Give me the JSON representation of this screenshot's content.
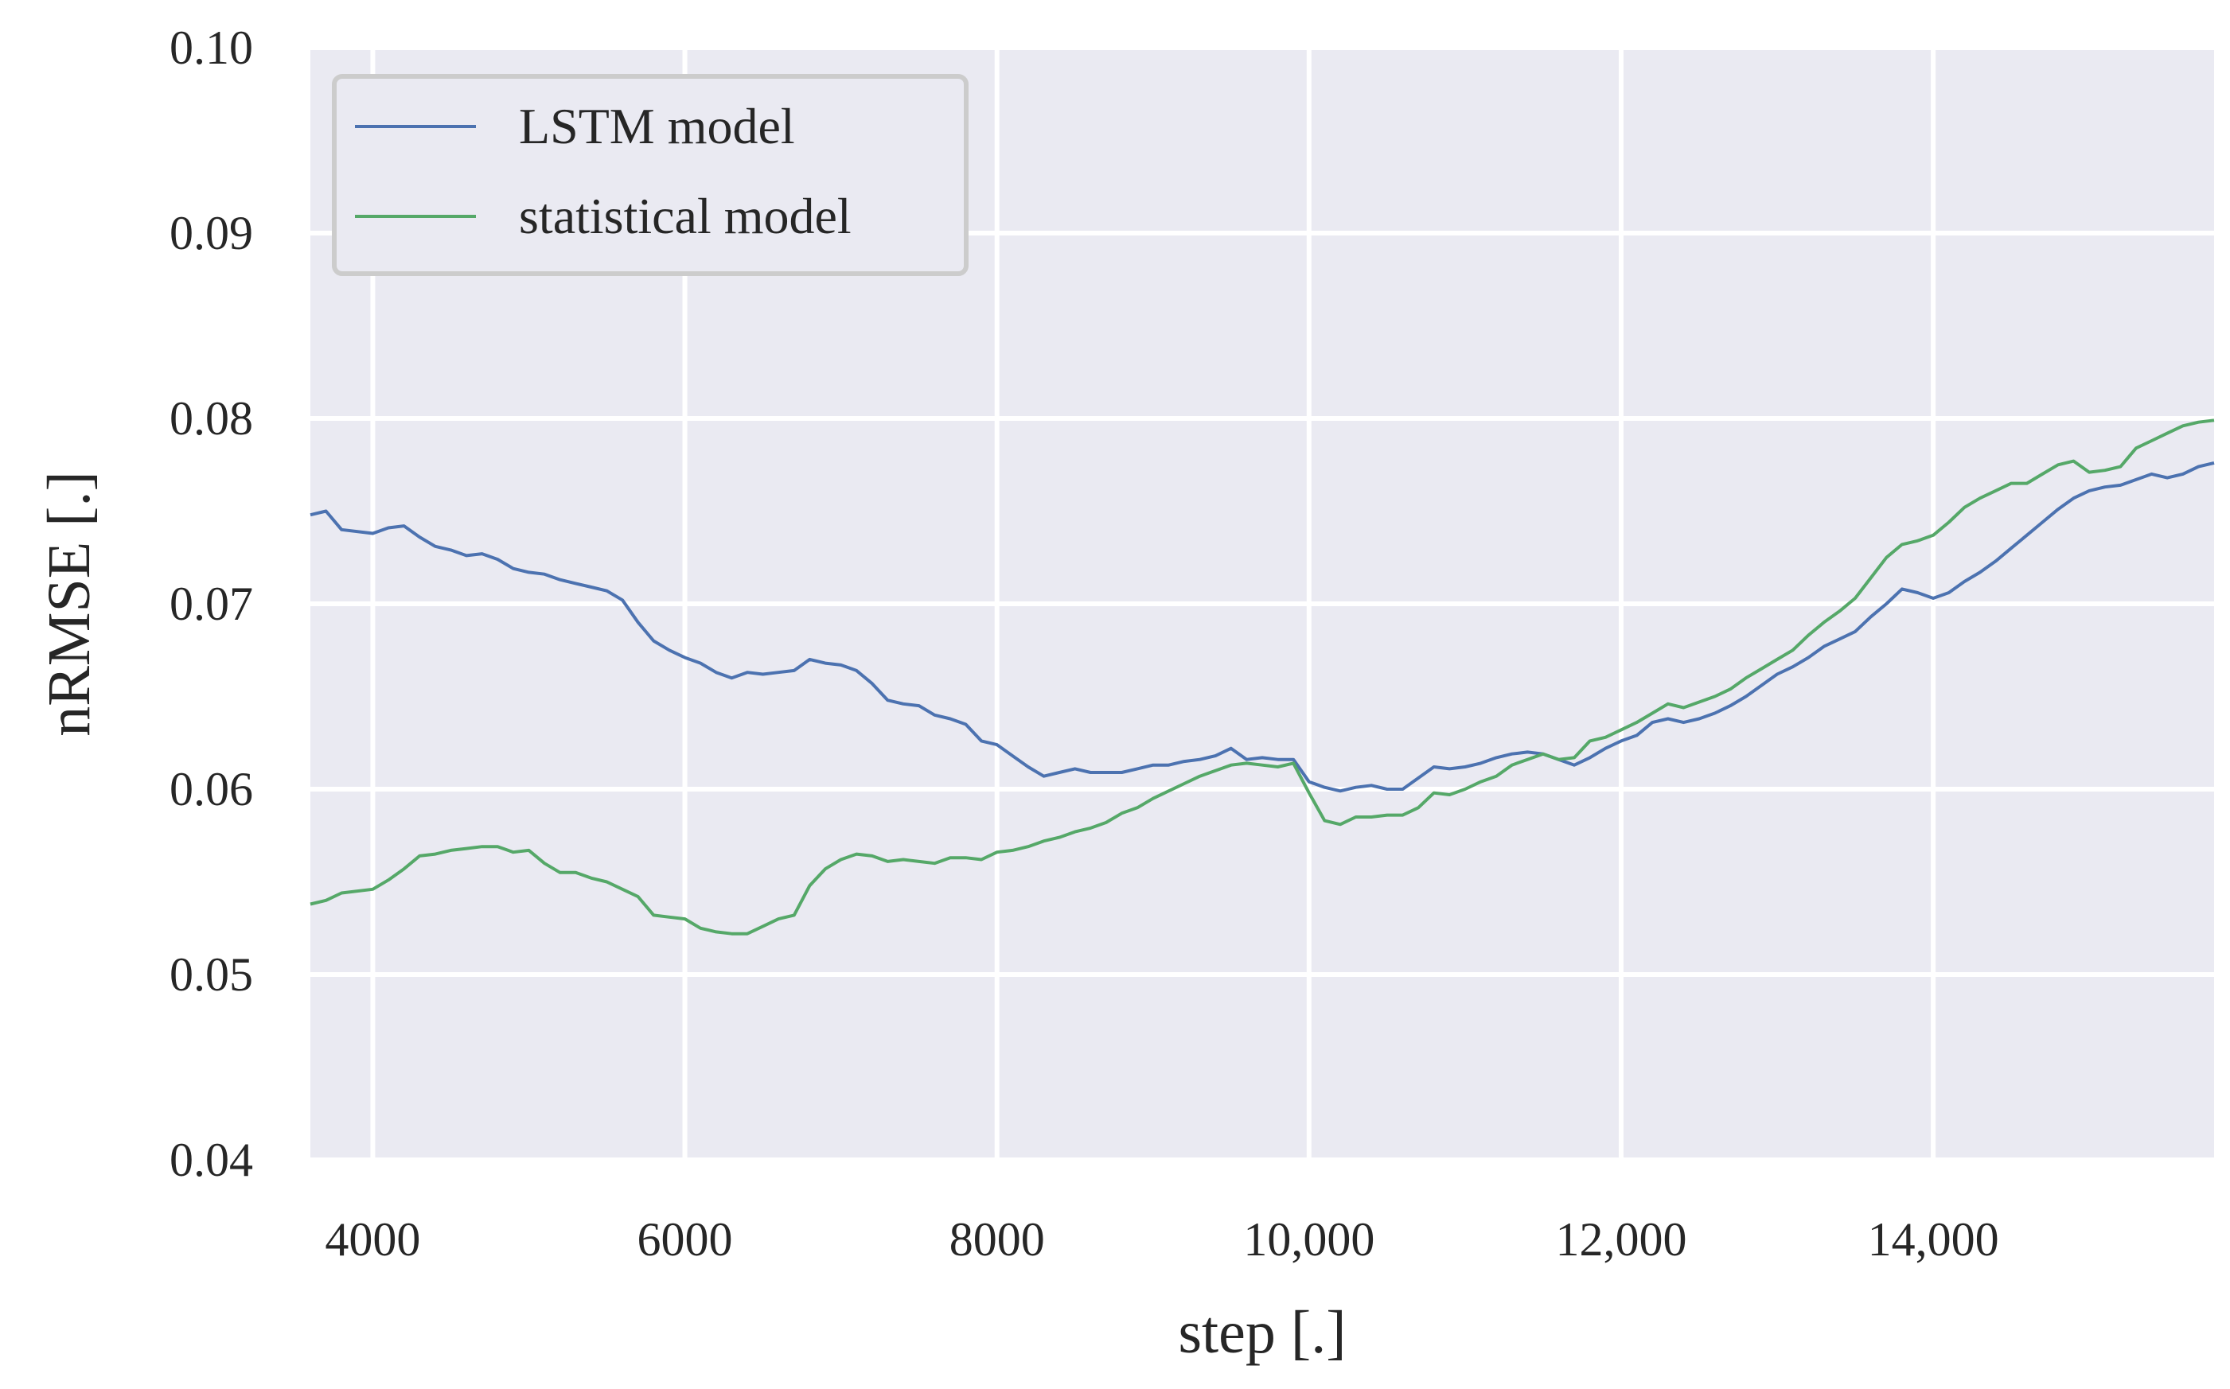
{
  "chart_data": {
    "type": "line",
    "title": "",
    "xlabel": "step [.]",
    "ylabel": "nRMSE [.]",
    "xlim": [
      3600,
      15800
    ],
    "ylim": [
      0.04,
      0.1
    ],
    "grid": true,
    "legend_position": "top-left",
    "colors": {
      "background": "#eaeaf2",
      "grid": "#ffffff"
    },
    "xticks": [
      {
        "value": 4000,
        "label": "4000"
      },
      {
        "value": 6000,
        "label": "6000"
      },
      {
        "value": 8000,
        "label": "8000"
      },
      {
        "value": 10000,
        "label": "10,000"
      },
      {
        "value": 12000,
        "label": "12,000"
      },
      {
        "value": 14000,
        "label": "14,000"
      }
    ],
    "yticks": [
      {
        "value": 0.04,
        "label": "0.04"
      },
      {
        "value": 0.05,
        "label": "0.05"
      },
      {
        "value": 0.06,
        "label": "0.06"
      },
      {
        "value": 0.07,
        "label": "0.07"
      },
      {
        "value": 0.08,
        "label": "0.08"
      },
      {
        "value": 0.09,
        "label": "0.09"
      },
      {
        "value": 0.1,
        "label": "0.10"
      }
    ],
    "series": [
      {
        "name": "LSTM model",
        "color": "#4c72b0",
        "x": [
          3600,
          3700,
          3800,
          4000,
          4100,
          4200,
          4300,
          4400,
          4500,
          4600,
          4700,
          4800,
          4900,
          5000,
          5100,
          5200,
          5300,
          5400,
          5500,
          5600,
          5700,
          5800,
          5900,
          6000,
          6100,
          6200,
          6300,
          6400,
          6500,
          6600,
          6700,
          6800,
          6900,
          7000,
          7100,
          7200,
          7300,
          7400,
          7500,
          7600,
          7700,
          7800,
          7900,
          8000,
          8100,
          8200,
          8300,
          8400,
          8500,
          8600,
          8700,
          8800,
          8900,
          9000,
          9100,
          9200,
          9300,
          9400,
          9500,
          9600,
          9700,
          9800,
          9900,
          10000,
          10100,
          10200,
          10300,
          10400,
          10500,
          10600,
          10700,
          10800,
          10900,
          11000,
          11100,
          11200,
          11300,
          11400,
          11500,
          11600,
          11700,
          11800,
          11900,
          12000,
          12100,
          12200,
          12300,
          12400,
          12500,
          12600,
          12700,
          12800,
          12900,
          13000,
          13100,
          13200,
          13300,
          13400,
          13500,
          13600,
          13700,
          13800,
          13900,
          14000,
          14100,
          14200,
          14300,
          14400,
          14500,
          14600,
          14700,
          14800,
          14900,
          15000,
          15100,
          15200,
          15300,
          15400,
          15500,
          15600,
          15700,
          15800
        ],
        "y": [
          0.0748,
          0.075,
          0.074,
          0.0738,
          0.0741,
          0.0742,
          0.0736,
          0.0731,
          0.0729,
          0.0726,
          0.0727,
          0.0724,
          0.0719,
          0.0717,
          0.0716,
          0.0713,
          0.0711,
          0.0709,
          0.0707,
          0.0702,
          0.069,
          0.068,
          0.0675,
          0.0671,
          0.0668,
          0.0663,
          0.066,
          0.0663,
          0.0662,
          0.0663,
          0.0664,
          0.067,
          0.0668,
          0.0667,
          0.0664,
          0.0657,
          0.0648,
          0.0646,
          0.0645,
          0.064,
          0.0638,
          0.0635,
          0.0626,
          0.0624,
          0.0618,
          0.0612,
          0.0607,
          0.0609,
          0.0611,
          0.0609,
          0.0609,
          0.0609,
          0.0611,
          0.0613,
          0.0613,
          0.0615,
          0.0616,
          0.0618,
          0.0622,
          0.0616,
          0.0617,
          0.0616,
          0.0616,
          0.0604,
          0.0601,
          0.0599,
          0.0601,
          0.0602,
          0.06,
          0.06,
          0.0606,
          0.0612,
          0.0611,
          0.0612,
          0.0614,
          0.0617,
          0.0619,
          0.062,
          0.0619,
          0.0616,
          0.0613,
          0.0617,
          0.0622,
          0.0626,
          0.0629,
          0.0636,
          0.0638,
          0.0636,
          0.0638,
          0.0641,
          0.0645,
          0.065,
          0.0656,
          0.0662,
          0.0666,
          0.0671,
          0.0677,
          0.0681,
          0.0685,
          0.0693,
          0.07,
          0.0708,
          0.0706,
          0.0703,
          0.0706,
          0.0712,
          0.0717,
          0.0723,
          0.073,
          0.0737,
          0.0744,
          0.0751,
          0.0757,
          0.0761,
          0.0763,
          0.0764,
          0.0767,
          0.077,
          0.0768,
          0.077,
          0.0774,
          0.0776
        ]
      },
      {
        "name": "statistical model",
        "color": "#55a868",
        "x": [
          3600,
          3700,
          3800,
          4000,
          4100,
          4200,
          4300,
          4400,
          4500,
          4600,
          4700,
          4800,
          4900,
          5000,
          5100,
          5200,
          5300,
          5400,
          5500,
          5600,
          5700,
          5800,
          5900,
          6000,
          6100,
          6200,
          6300,
          6400,
          6500,
          6600,
          6700,
          6800,
          6900,
          7000,
          7100,
          7200,
          7300,
          7400,
          7500,
          7600,
          7700,
          7800,
          7900,
          8000,
          8100,
          8200,
          8300,
          8400,
          8500,
          8600,
          8700,
          8800,
          8900,
          9000,
          9100,
          9200,
          9300,
          9400,
          9500,
          9600,
          9700,
          9800,
          9900,
          10000,
          10100,
          10200,
          10300,
          10400,
          10500,
          10600,
          10700,
          10800,
          10900,
          11000,
          11100,
          11200,
          11300,
          11400,
          11500,
          11600,
          11700,
          11800,
          11900,
          12000,
          12100,
          12200,
          12300,
          12400,
          12500,
          12600,
          12700,
          12800,
          12900,
          13000,
          13100,
          13200,
          13300,
          13400,
          13500,
          13600,
          13700,
          13800,
          13900,
          14000,
          14100,
          14200,
          14300,
          14400,
          14500,
          14600,
          14700,
          14800,
          14900,
          15000,
          15100,
          15200,
          15300,
          15400,
          15500,
          15600,
          15700,
          15800
        ],
        "y": [
          0.0538,
          0.054,
          0.0544,
          0.0546,
          0.0551,
          0.0557,
          0.0564,
          0.0565,
          0.0567,
          0.0568,
          0.0569,
          0.0569,
          0.0566,
          0.0567,
          0.056,
          0.0555,
          0.0555,
          0.0552,
          0.055,
          0.0546,
          0.0542,
          0.0532,
          0.0531,
          0.053,
          0.0525,
          0.0523,
          0.0522,
          0.0522,
          0.0526,
          0.053,
          0.0532,
          0.0548,
          0.0557,
          0.0562,
          0.0565,
          0.0564,
          0.0561,
          0.0562,
          0.0561,
          0.056,
          0.0563,
          0.0563,
          0.0562,
          0.0566,
          0.0567,
          0.0569,
          0.0572,
          0.0574,
          0.0577,
          0.0579,
          0.0582,
          0.0587,
          0.059,
          0.0595,
          0.0599,
          0.0603,
          0.0607,
          0.061,
          0.0613,
          0.0614,
          0.0613,
          0.0612,
          0.0614,
          0.0598,
          0.0583,
          0.0581,
          0.0585,
          0.0585,
          0.0586,
          0.0586,
          0.059,
          0.0598,
          0.0597,
          0.06,
          0.0604,
          0.0607,
          0.0613,
          0.0616,
          0.0619,
          0.0616,
          0.0617,
          0.0626,
          0.0628,
          0.0632,
          0.0636,
          0.0641,
          0.0646,
          0.0644,
          0.0647,
          0.065,
          0.0654,
          0.066,
          0.0665,
          0.067,
          0.0675,
          0.0683,
          0.069,
          0.0696,
          0.0703,
          0.0714,
          0.0725,
          0.0732,
          0.0734,
          0.0737,
          0.0744,
          0.0752,
          0.0757,
          0.0761,
          0.0765,
          0.0765,
          0.077,
          0.0775,
          0.0777,
          0.0771,
          0.0772,
          0.0774,
          0.0784,
          0.0788,
          0.0792,
          0.0796,
          0.0798,
          0.0799
        ]
      }
    ]
  }
}
